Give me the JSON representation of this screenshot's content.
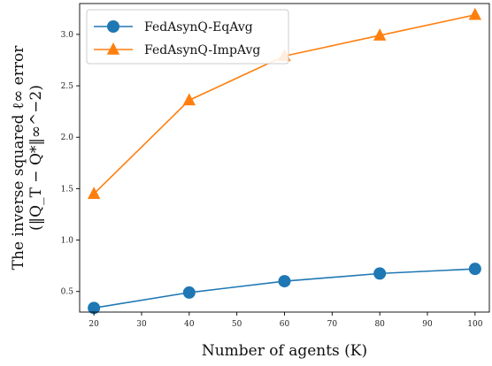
{
  "chart_data": {
    "type": "line",
    "title": "",
    "xlabel": "Number of agents (K)",
    "ylabel_line1": "The inverse squared ℓ∞ error",
    "ylabel_line2": "(‖Q_T − Q*‖∞^−2)",
    "x": [
      20,
      40,
      60,
      80,
      100
    ],
    "xlim": [
      17,
      103
    ],
    "ylim": [
      0.3,
      3.3
    ],
    "xticks": [
      "20",
      "30",
      "40",
      "50",
      "60",
      "70",
      "80",
      "90",
      "100"
    ],
    "yticks": [
      "0.5",
      "1.0",
      "1.5",
      "2.0",
      "2.5",
      "3.0"
    ],
    "legend_position": "top-left",
    "series": [
      {
        "name": "FedAsynQ-EqAvg",
        "values": [
          0.34,
          0.49,
          0.6,
          0.675,
          0.72
        ],
        "color": "#1f77b4",
        "marker": "circle"
      },
      {
        "name": "FedAsynQ-ImpAvg",
        "values": [
          1.45,
          2.36,
          2.79,
          2.99,
          3.19
        ],
        "color": "#ff7f0e",
        "marker": "triangle"
      }
    ]
  }
}
